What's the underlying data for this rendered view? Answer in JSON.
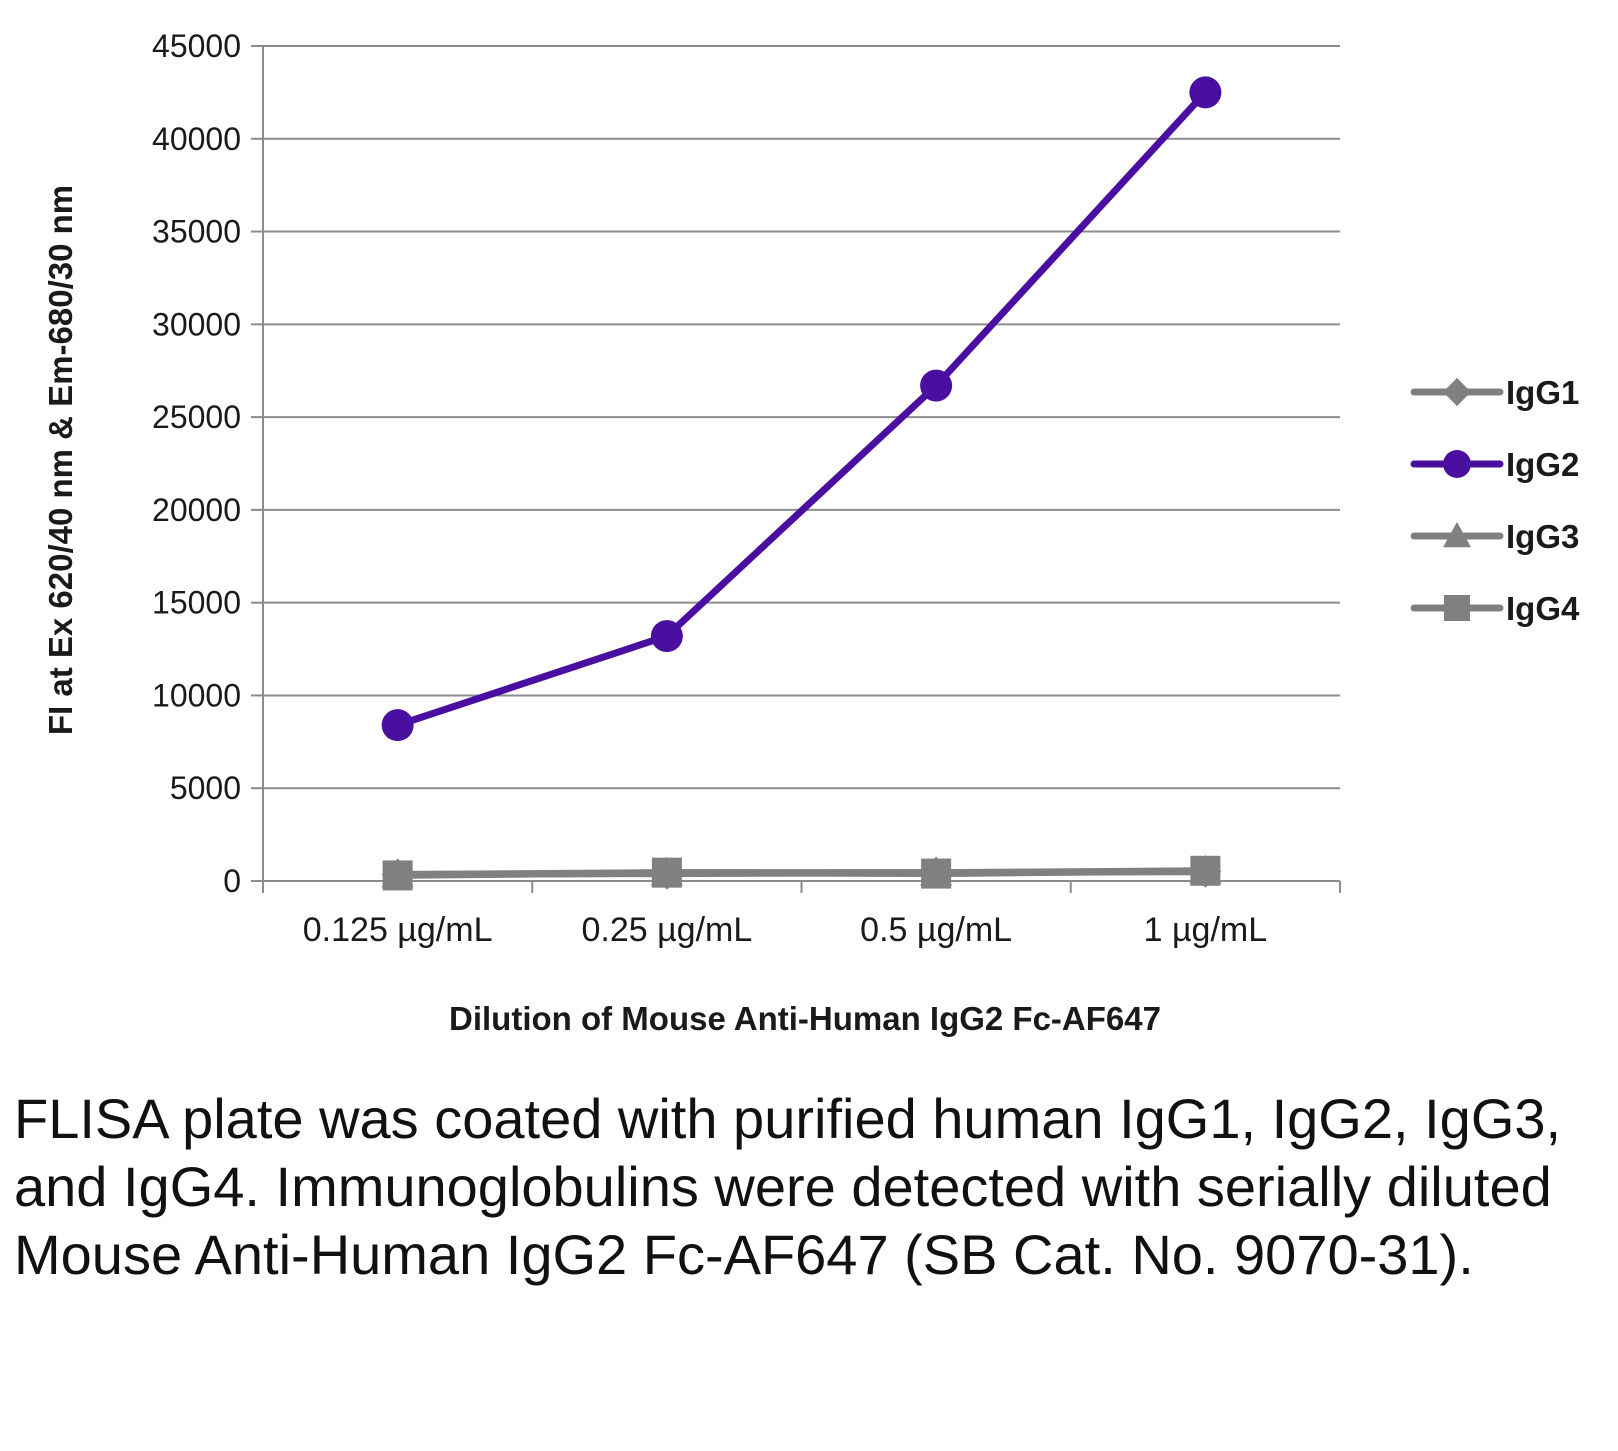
{
  "chart_data": {
    "type": "line",
    "categories": [
      "0.125 µg/mL",
      "0.25 µg/mL",
      "0.5 µg/mL",
      "1 µg/mL"
    ],
    "xlabel": "Dilution of Mouse Anti-Human IgG2 Fc-AF647",
    "ylabel": "FI at Ex 620/40 nm & Em-680/30 nm",
    "ylim": [
      0,
      45000
    ],
    "yticks": [
      0,
      5000,
      10000,
      15000,
      20000,
      25000,
      30000,
      35000,
      40000,
      45000
    ],
    "grid": true,
    "legend_position": "right",
    "series": [
      {
        "name": "IgG1",
        "marker": "diamond",
        "color": "#808080",
        "values": [
          350,
          400,
          450,
          500
        ]
      },
      {
        "name": "IgG2",
        "marker": "circle",
        "color": "#4a0fa0",
        "values": [
          8400,
          13200,
          26700,
          42500
        ]
      },
      {
        "name": "IgG3",
        "marker": "triangle",
        "color": "#808080",
        "values": [
          350,
          450,
          450,
          550
        ]
      },
      {
        "name": "IgG4",
        "marker": "square",
        "color": "#808080",
        "values": [
          300,
          450,
          400,
          550
        ]
      }
    ]
  },
  "caption": "FLISA plate was coated with purified human IgG1, IgG2, IgG3, and IgG4.  Immunoglobulins were detected with serially diluted Mouse Anti-Human IgG2 Fc-AF647 (SB Cat. No. 9070-31)."
}
